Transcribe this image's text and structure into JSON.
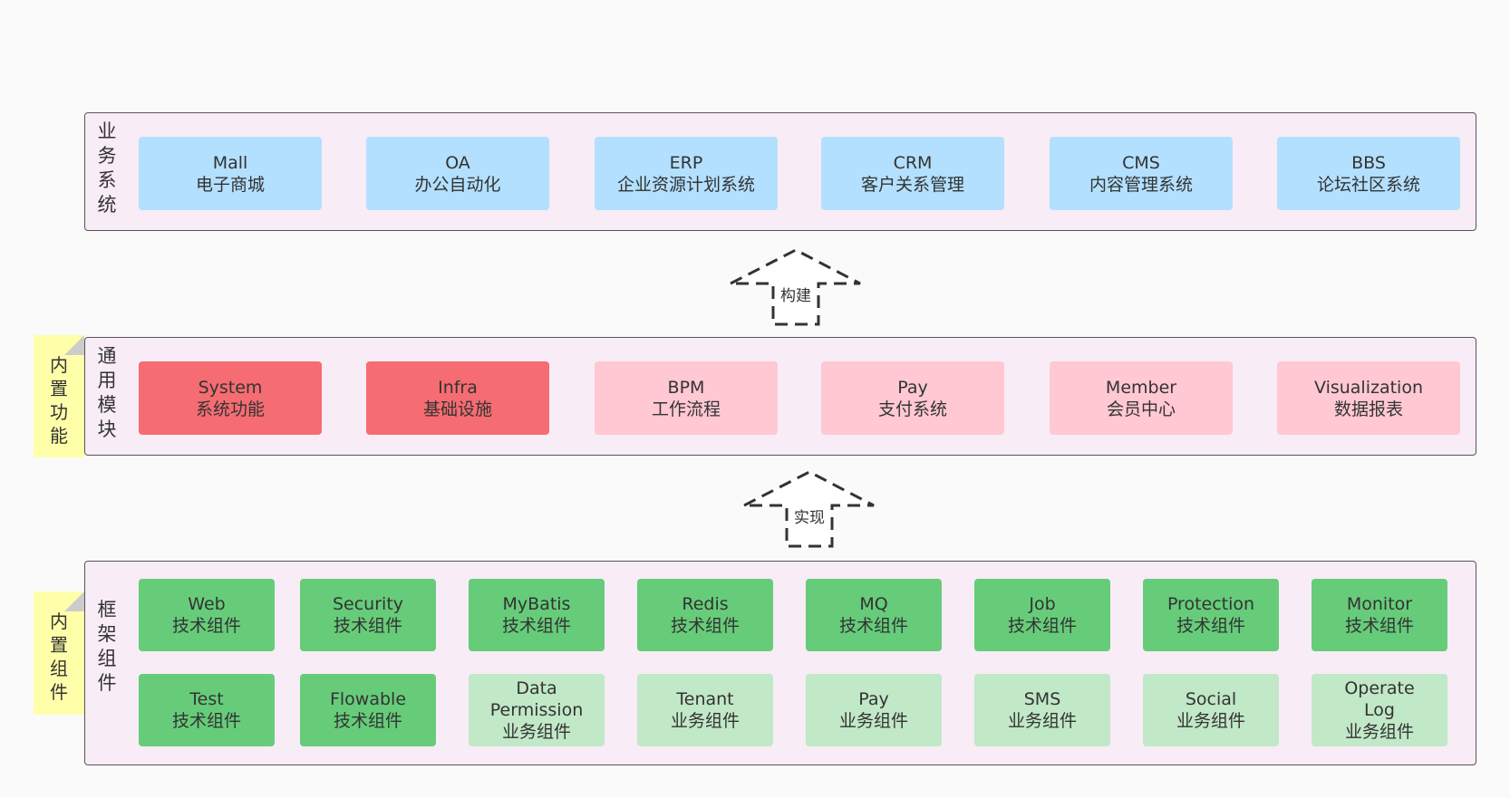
{
  "business": {
    "side_label": "业务系统",
    "items": [
      {
        "name": "Mall",
        "desc": "电子商城"
      },
      {
        "name": "OA",
        "desc": "办公自动化"
      },
      {
        "name": "ERP",
        "desc": "企业资源计划系统"
      },
      {
        "name": "CRM",
        "desc": "客户关系管理"
      },
      {
        "name": "CMS",
        "desc": "内容管理系统"
      },
      {
        "name": "BBS",
        "desc": "论坛社区系统"
      }
    ]
  },
  "arrow_build": {
    "label": "构建"
  },
  "modules": {
    "side_label": "通用模块",
    "note": "内置功能",
    "items": [
      {
        "name": "System",
        "desc": "系统功能",
        "style": "builtin"
      },
      {
        "name": "Infra",
        "desc": "基础设施",
        "style": "builtin"
      },
      {
        "name": "BPM",
        "desc": "工作流程",
        "style": "optional"
      },
      {
        "name": "Pay",
        "desc": "支付系统",
        "style": "optional"
      },
      {
        "name": "Member",
        "desc": "会员中心",
        "style": "optional"
      },
      {
        "name": "Visualization",
        "desc": "数据报表",
        "style": "optional"
      }
    ]
  },
  "arrow_impl": {
    "label": "实现"
  },
  "framework": {
    "side_label": "框架组件",
    "note": "内置组件",
    "row1": [
      {
        "name": "Web",
        "desc": "技术组件"
      },
      {
        "name": "Security",
        "desc": "技术组件"
      },
      {
        "name": "MyBatis",
        "desc": "技术组件"
      },
      {
        "name": "Redis",
        "desc": "技术组件"
      },
      {
        "name": "MQ",
        "desc": "技术组件"
      },
      {
        "name": "Job",
        "desc": "技术组件"
      },
      {
        "name": "Protection",
        "desc": "技术组件"
      },
      {
        "name": "Monitor",
        "desc": "技术组件"
      }
    ],
    "row2": [
      {
        "name": "Test",
        "desc": "技术组件",
        "style": "builtin"
      },
      {
        "name": "Flowable",
        "desc": "技术组件",
        "style": "builtin"
      },
      {
        "name": "Data Permission",
        "desc": "业务组件",
        "style": "optional"
      },
      {
        "name": "Tenant",
        "desc": "业务组件",
        "style": "optional"
      },
      {
        "name": "Pay",
        "desc": "业务组件",
        "style": "optional"
      },
      {
        "name": "SMS",
        "desc": "业务组件",
        "style": "optional"
      },
      {
        "name": "Social",
        "desc": "业务组件",
        "style": "optional"
      },
      {
        "name": "Operate Log",
        "desc": "业务组件",
        "style": "optional"
      }
    ]
  },
  "colors": {
    "business": "#b3e0ff",
    "module_builtin": "#f56c72",
    "module_optional": "#ffc8d3",
    "component_builtin": "#66cc7a",
    "component_optional": "#c1e8c7",
    "panel": "#f8ecf6",
    "note": "#ffffaa"
  }
}
